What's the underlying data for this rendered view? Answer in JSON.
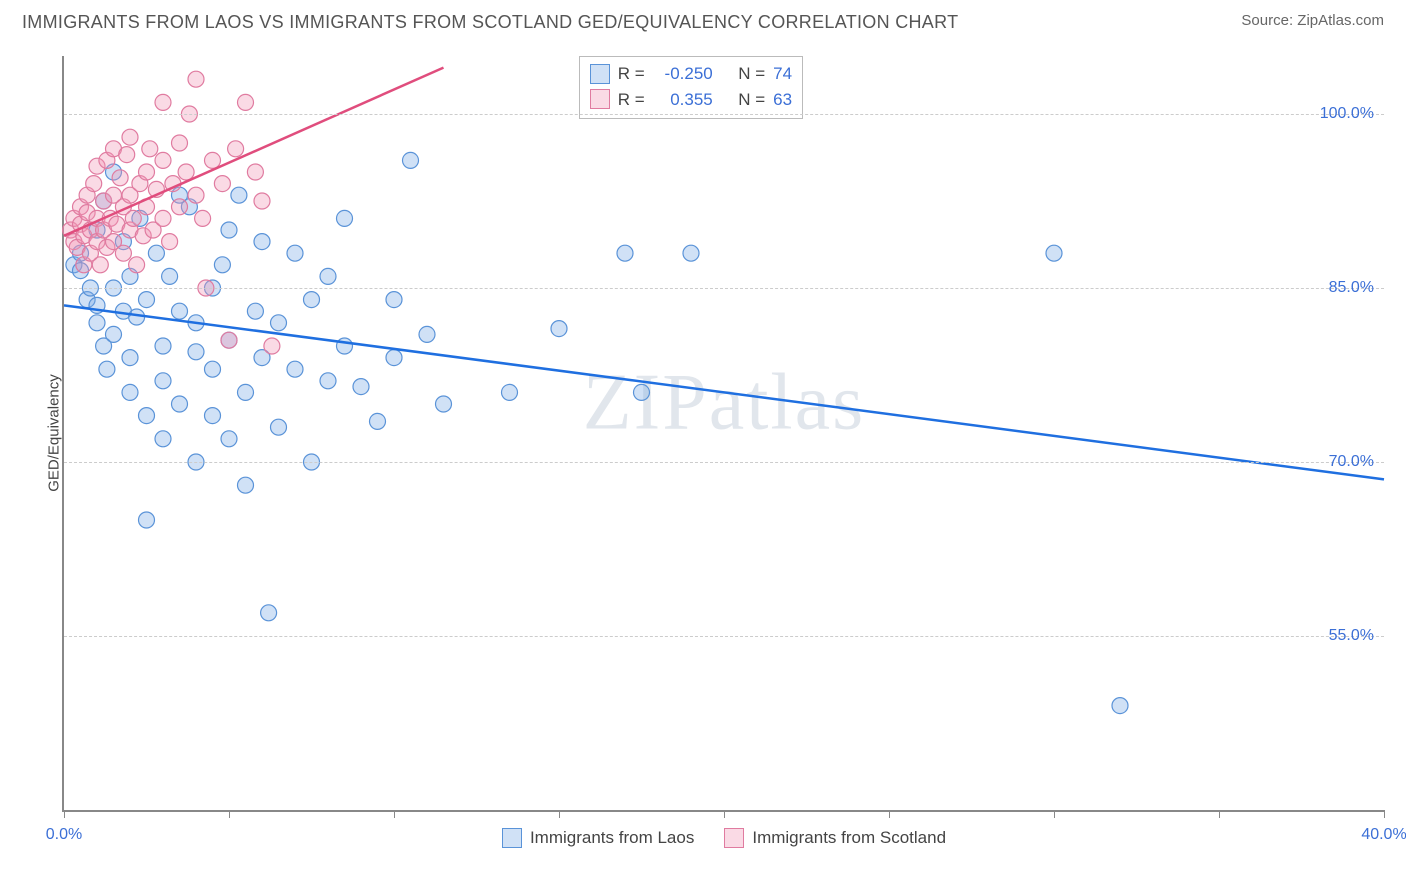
{
  "title": "IMMIGRANTS FROM LAOS VS IMMIGRANTS FROM SCOTLAND GED/EQUIVALENCY CORRELATION CHART",
  "source_prefix": "Source: ",
  "source": "ZipAtlas.com",
  "ylabel": "GED/Equivalency",
  "watermark_a": "ZIP",
  "watermark_b": "atlas",
  "chart": {
    "type": "scatter",
    "background_color": "#ffffff",
    "grid_color": "#cccccc",
    "axis_color": "#888888",
    "xlim": [
      0,
      40
    ],
    "ylim": [
      40,
      105
    ],
    "xticks": [
      0,
      5,
      10,
      15,
      20,
      25,
      30,
      35,
      40
    ],
    "xtick_labels": {
      "0": "0.0%",
      "40": "40.0%"
    },
    "yticks": [
      55,
      70,
      85,
      100
    ],
    "ytick_labels": {
      "55": "55.0%",
      "70": "70.0%",
      "85": "85.0%",
      "100": "100.0%"
    },
    "marker_radius": 8,
    "marker_stroke_width": 1.2,
    "line_width": 2.5,
    "series": [
      {
        "key": "laos",
        "label": "Immigrants from Laos",
        "fill": "rgba(120,170,230,0.35)",
        "stroke": "#5a93d8",
        "line_color": "#1f6fe0",
        "R": "-0.250",
        "N": "74",
        "trend": {
          "x1": 0,
          "y1": 83.5,
          "x2": 40,
          "y2": 68.5
        },
        "points": [
          [
            0.3,
            87
          ],
          [
            0.5,
            86.5
          ],
          [
            0.5,
            88
          ],
          [
            0.7,
            84
          ],
          [
            0.8,
            85
          ],
          [
            1.0,
            82
          ],
          [
            1.0,
            83.5
          ],
          [
            1.0,
            90
          ],
          [
            1.2,
            80
          ],
          [
            1.2,
            92.5
          ],
          [
            1.3,
            78
          ],
          [
            1.5,
            85
          ],
          [
            1.5,
            81
          ],
          [
            1.5,
            95
          ],
          [
            1.8,
            83
          ],
          [
            1.8,
            89
          ],
          [
            2.0,
            76
          ],
          [
            2.0,
            79
          ],
          [
            2.0,
            86
          ],
          [
            2.2,
            82.5
          ],
          [
            2.3,
            91
          ],
          [
            2.5,
            84
          ],
          [
            2.5,
            74
          ],
          [
            2.5,
            65
          ],
          [
            2.8,
            88
          ],
          [
            3.0,
            80
          ],
          [
            3.0,
            77
          ],
          [
            3.0,
            72
          ],
          [
            3.2,
            86
          ],
          [
            3.5,
            83
          ],
          [
            3.5,
            75
          ],
          [
            3.5,
            93
          ],
          [
            3.8,
            92
          ],
          [
            4.0,
            70
          ],
          [
            4.0,
            79.5
          ],
          [
            4.0,
            82
          ],
          [
            4.5,
            85
          ],
          [
            4.5,
            78
          ],
          [
            4.5,
            74
          ],
          [
            4.8,
            87
          ],
          [
            5.0,
            80.5
          ],
          [
            5.0,
            72
          ],
          [
            5.0,
            90
          ],
          [
            5.3,
            93
          ],
          [
            5.5,
            76
          ],
          [
            5.5,
            68
          ],
          [
            5.8,
            83
          ],
          [
            6.0,
            89
          ],
          [
            6.0,
            79
          ],
          [
            6.2,
            57
          ],
          [
            6.5,
            82
          ],
          [
            6.5,
            73
          ],
          [
            7.0,
            88
          ],
          [
            7.0,
            78
          ],
          [
            7.5,
            84
          ],
          [
            7.5,
            70
          ],
          [
            8.0,
            77
          ],
          [
            8.0,
            86
          ],
          [
            8.5,
            80
          ],
          [
            8.5,
            91
          ],
          [
            9.0,
            76.5
          ],
          [
            9.5,
            73.5
          ],
          [
            10.0,
            84
          ],
          [
            10.0,
            79
          ],
          [
            10.5,
            96
          ],
          [
            11.0,
            81
          ],
          [
            11.5,
            75
          ],
          [
            13.5,
            76
          ],
          [
            15.0,
            81.5
          ],
          [
            17.0,
            88
          ],
          [
            17.5,
            76
          ],
          [
            19.0,
            88
          ],
          [
            30.0,
            88
          ],
          [
            32.0,
            49
          ]
        ]
      },
      {
        "key": "scotland",
        "label": "Immigrants from Scotland",
        "fill": "rgba(240,150,180,0.35)",
        "stroke": "#e07ba0",
        "line_color": "#e04d7d",
        "R": "0.355",
        "N": "63",
        "trend": {
          "x1": 0,
          "y1": 89.5,
          "x2": 11.5,
          "y2": 104
        },
        "points": [
          [
            0.2,
            90
          ],
          [
            0.3,
            89
          ],
          [
            0.3,
            91
          ],
          [
            0.4,
            88.5
          ],
          [
            0.5,
            90.5
          ],
          [
            0.5,
            92
          ],
          [
            0.6,
            87
          ],
          [
            0.6,
            89.5
          ],
          [
            0.7,
            91.5
          ],
          [
            0.7,
            93
          ],
          [
            0.8,
            88
          ],
          [
            0.8,
            90
          ],
          [
            0.9,
            94
          ],
          [
            1.0,
            89
          ],
          [
            1.0,
            91
          ],
          [
            1.0,
            95.5
          ],
          [
            1.1,
            87
          ],
          [
            1.2,
            90
          ],
          [
            1.2,
            92.5
          ],
          [
            1.3,
            88.5
          ],
          [
            1.3,
            96
          ],
          [
            1.4,
            91
          ],
          [
            1.5,
            89
          ],
          [
            1.5,
            93
          ],
          [
            1.5,
            97
          ],
          [
            1.6,
            90.5
          ],
          [
            1.7,
            94.5
          ],
          [
            1.8,
            88
          ],
          [
            1.8,
            92
          ],
          [
            1.9,
            96.5
          ],
          [
            2.0,
            90
          ],
          [
            2.0,
            93
          ],
          [
            2.0,
            98
          ],
          [
            2.1,
            91
          ],
          [
            2.2,
            87
          ],
          [
            2.3,
            94
          ],
          [
            2.4,
            89.5
          ],
          [
            2.5,
            92
          ],
          [
            2.5,
            95
          ],
          [
            2.6,
            97
          ],
          [
            2.7,
            90
          ],
          [
            2.8,
            93.5
          ],
          [
            3.0,
            91
          ],
          [
            3.0,
            96
          ],
          [
            3.0,
            101
          ],
          [
            3.2,
            89
          ],
          [
            3.3,
            94
          ],
          [
            3.5,
            92
          ],
          [
            3.5,
            97.5
          ],
          [
            3.7,
            95
          ],
          [
            3.8,
            100
          ],
          [
            4.0,
            93
          ],
          [
            4.0,
            103
          ],
          [
            4.2,
            91
          ],
          [
            4.3,
            85
          ],
          [
            4.5,
            96
          ],
          [
            4.8,
            94
          ],
          [
            5.0,
            80.5
          ],
          [
            5.2,
            97
          ],
          [
            5.5,
            101
          ],
          [
            5.8,
            95
          ],
          [
            6.0,
            92.5
          ],
          [
            6.3,
            80
          ]
        ]
      }
    ]
  },
  "legend_top_labels": {
    "R": "R =",
    "N": "N ="
  }
}
